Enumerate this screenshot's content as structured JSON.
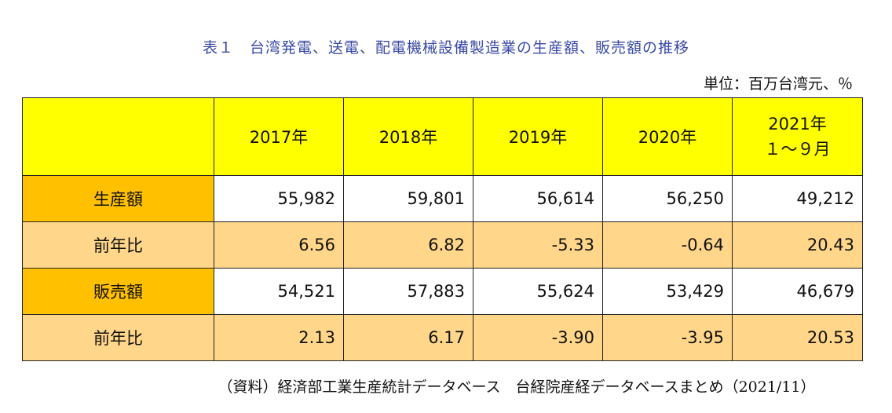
{
  "title": "表１　台湾発電、送電、配電機械設備製造業の生産額、販売額の推移",
  "unit": "単位：百万台湾元、％",
  "table": {
    "corner": "",
    "headers": [
      "2017年",
      "2018年",
      "2019年",
      "2020年"
    ],
    "last_header_line1": "2021年",
    "last_header_line2": "１～９月",
    "rows": [
      {
        "label": "生産額",
        "values": [
          "55,982",
          "59,801",
          "56,614",
          "56,250",
          "49,212"
        ]
      },
      {
        "label": "前年比",
        "values": [
          "6.56",
          "6.82",
          "-5.33",
          "-0.64",
          "20.43"
        ]
      },
      {
        "label": "販売額",
        "values": [
          "54,521",
          "57,883",
          "55,624",
          "53,429",
          "46,679"
        ]
      },
      {
        "label": "前年比",
        "values": [
          "2.13",
          "6.17",
          "-3.90",
          "-3.95",
          "20.53"
        ]
      }
    ]
  },
  "source": "（資料）経済部工業生産統計データベース　台経院産経データベースまとめ（2021/11）",
  "colors": {
    "header_bg": "#ffff00",
    "label_orange": "#ffc000",
    "label_peach": "#ffd68a",
    "title_blue": "#3a4aa6"
  }
}
